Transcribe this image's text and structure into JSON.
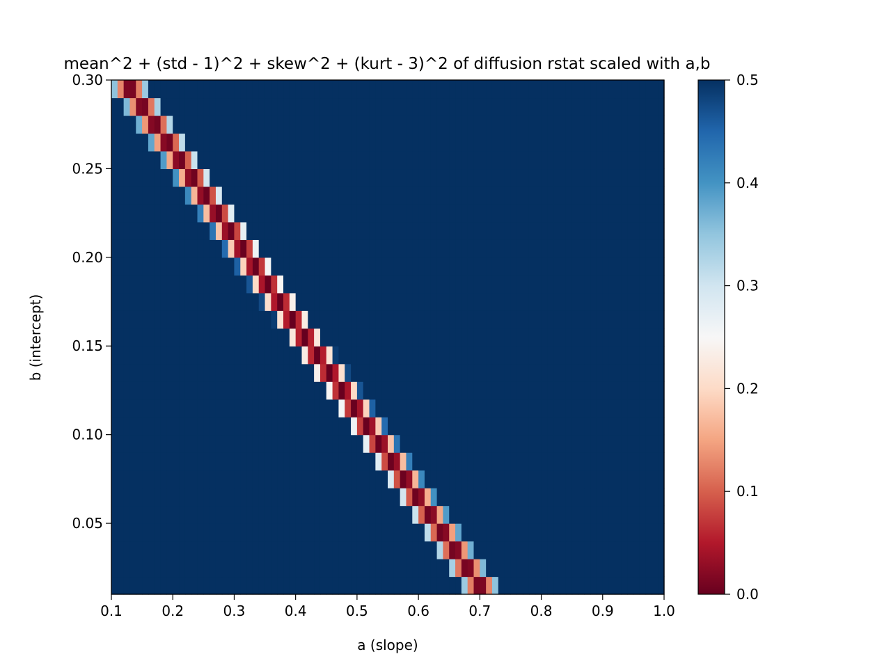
{
  "chart_data": {
    "type": "heatmap",
    "title": "mean^2 + (std - 1)^2 + skew^2 + (kurt - 3)^2 of diffusion rstat scaled with a,b",
    "xlabel": "a (slope)",
    "ylabel": "b (intercept)",
    "xlim": [
      0.1,
      1.0
    ],
    "ylim": [
      0.01,
      0.3
    ],
    "x_ticks": [
      0.1,
      0.2,
      0.3,
      0.4,
      0.5,
      0.6,
      0.7,
      0.8,
      0.9,
      1.0
    ],
    "x_tick_labels": [
      "0.1",
      "0.2",
      "0.3",
      "0.4",
      "0.5",
      "0.6",
      "0.7",
      "0.8",
      "0.9",
      "1.0"
    ],
    "y_ticks": [
      0.05,
      0.1,
      0.15,
      0.2,
      0.25,
      0.3
    ],
    "y_tick_labels": [
      "0.05",
      "0.10",
      "0.15",
      "0.20",
      "0.25",
      "0.30"
    ],
    "colorbar": {
      "colormap": "RdBu",
      "vmin": 0.0,
      "vmax": 0.5,
      "ticks": [
        0.0,
        0.1,
        0.2,
        0.3,
        0.4,
        0.5
      ],
      "tick_labels": [
        "0.0",
        "0.1",
        "0.2",
        "0.3",
        "0.4",
        "0.5"
      ]
    },
    "grid": false,
    "grid_shape": {
      "cols": 90,
      "rows": 29
    },
    "valley": {
      "description_note": "",
      "points": [
        {
          "a": 0.12,
          "b": 0.3
        },
        {
          "a": 0.71,
          "b": 0.01
        }
      ],
      "half_width_a": 0.03
    }
  }
}
